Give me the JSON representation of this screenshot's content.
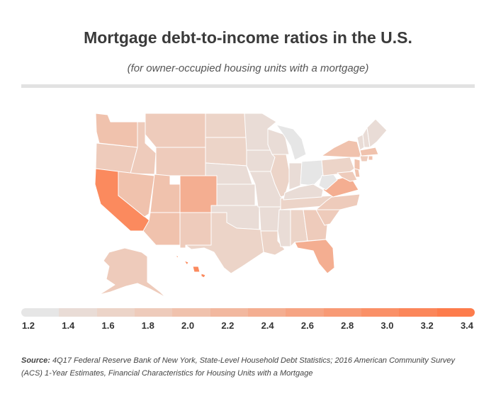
{
  "header": {
    "title": "Mortgage debt-to-income ratios in the U.S.",
    "subtitle": "(for owner-occupied housing units with a mortgage)"
  },
  "legend": {
    "labels": [
      "1.2",
      "1.4",
      "1.6",
      "1.8",
      "2.0",
      "2.2",
      "2.4",
      "2.6",
      "2.8",
      "3.0",
      "3.2",
      "3.4"
    ],
    "colors": [
      "#e6e6e6",
      "#e9dcd6",
      "#ecd4c8",
      "#eecbbb",
      "#f0c2ad",
      "#f2b89f",
      "#f4ae91",
      "#f6a483",
      "#f89a75",
      "#fa9067",
      "#fb865a",
      "#fd7c4c"
    ]
  },
  "map_colors": {
    "lowest": "#e6e6e6",
    "very_low": "#e9dcd6",
    "low": "#ecd4c8",
    "mid_low": "#eecbbb",
    "mid": "#f0c2ad",
    "mid_high": "#f2b89f",
    "high": "#f4ae91",
    "highest": "#fb8a5e",
    "border": "#ffffff"
  },
  "source": {
    "label": "Source:",
    "text": "4Q17 Federal Reserve Bank of New York, State-Level Household Debt Statistics; 2016 American Community Survey (ACS) 1-Year Estimates, Financial Characteristics for Housing Units with a Mortgage"
  }
}
